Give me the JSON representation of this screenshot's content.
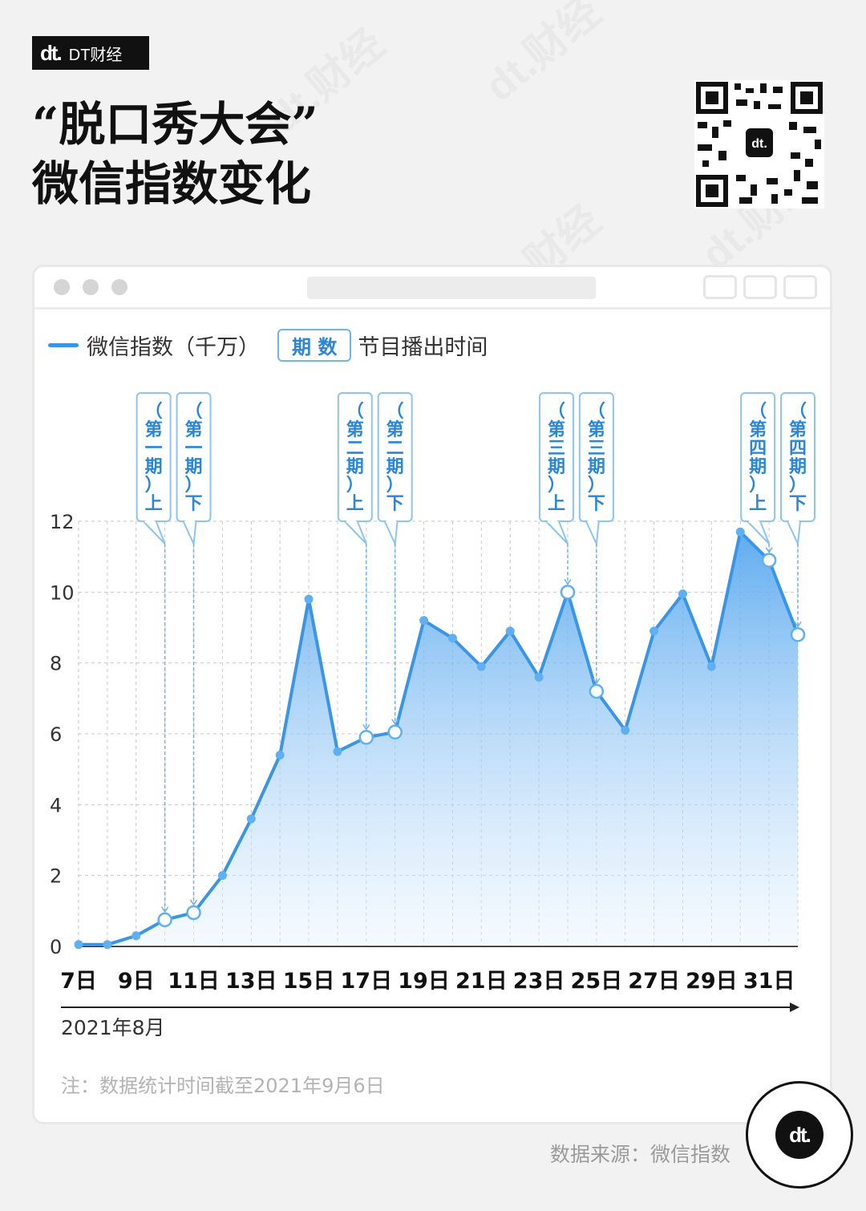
{
  "header": {
    "logo_mark": "dt.",
    "logo_text": "DT财经",
    "title_line1": "“脱口秀大会”",
    "title_line2": "微信指数变化"
  },
  "legend": {
    "series_label": "微信指数（千万）",
    "tag_label": "期 数",
    "tag_desc": "节目播出时间"
  },
  "colors": {
    "line": "#3a95e6",
    "fill_top": "#5aa9f0",
    "marker": "#5fb0f2",
    "grid": "#c9c9c9"
  },
  "chart_data": {
    "type": "area",
    "y_ticks": [
      "0",
      "2",
      "4",
      "6",
      "8",
      "10",
      "12"
    ],
    "ylim": [
      0,
      12
    ],
    "x_tick_labels": [
      "7日",
      "9日",
      "11日",
      "13日",
      "15日",
      "17日",
      "19日",
      "21日",
      "23日",
      "25日",
      "27日",
      "29日",
      "31日"
    ],
    "x_tick_days": [
      7,
      9,
      11,
      13,
      15,
      17,
      19,
      21,
      23,
      25,
      27,
      29,
      31
    ],
    "xlabel": "2021年8月",
    "series": [
      {
        "x": [
          7,
          8,
          9,
          10,
          11,
          12,
          13,
          14,
          15,
          16,
          17,
          18,
          19,
          20,
          21,
          22,
          23,
          24,
          25,
          26,
          27,
          28,
          29,
          30,
          31,
          32
        ],
        "values": [
          0.05,
          0.05,
          0.3,
          0.75,
          0.95,
          2.0,
          3.6,
          5.4,
          9.8,
          5.5,
          5.9,
          6.05,
          9.2,
          8.7,
          7.9,
          8.9,
          7.6,
          10.0,
          7.2,
          6.1,
          8.9,
          9.95,
          7.9,
          11.7,
          10.9,
          8.8
        ]
      }
    ],
    "episodes": [
      {
        "label": [
          "（",
          "第",
          "一",
          "期",
          "）",
          "上"
        ],
        "day": 10
      },
      {
        "label": [
          "（",
          "第",
          "一",
          "期",
          "）",
          "下"
        ],
        "day": 11
      },
      {
        "label": [
          "（",
          "第",
          "二",
          "期",
          "）",
          "上"
        ],
        "day": 17
      },
      {
        "label": [
          "（",
          "第",
          "二",
          "期",
          "）",
          "下"
        ],
        "day": 18
      },
      {
        "label": [
          "（",
          "第",
          "三",
          "期",
          "）",
          "上"
        ],
        "day": 24
      },
      {
        "label": [
          "（",
          "第",
          "三",
          "期",
          "）",
          "下"
        ],
        "day": 25
      },
      {
        "label": [
          "（",
          "第",
          "四",
          "期",
          "）",
          "上"
        ],
        "day": 31
      },
      {
        "label": [
          "（",
          "第",
          "四",
          "期",
          "）",
          "下"
        ],
        "day": 32
      }
    ]
  },
  "footer": {
    "note": "注：数据统计时间截至2021年9月6日",
    "source": "数据来源：微信指数",
    "badge_mark": "dt."
  }
}
